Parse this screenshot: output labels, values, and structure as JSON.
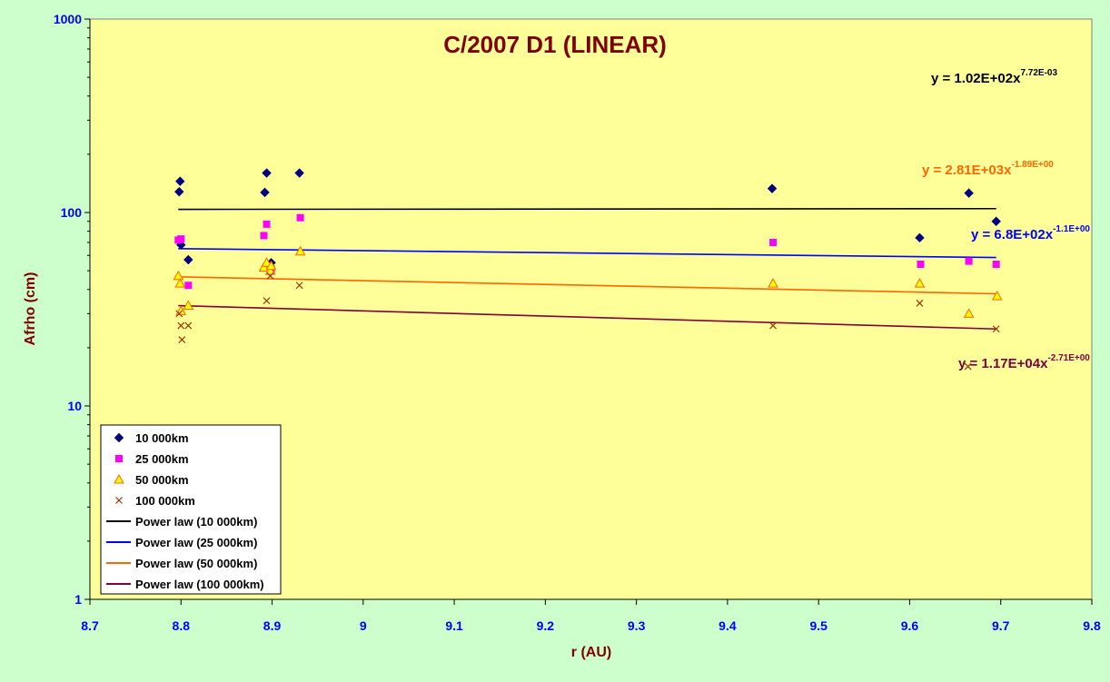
{
  "chart_data": {
    "type": "scatter",
    "title": "C/2007 D1 (LINEAR)",
    "xlabel": "r (AU)",
    "ylabel": "Afrho (cm)",
    "xlim": [
      8.7,
      9.8
    ],
    "ylim": [
      1,
      1000
    ],
    "yscale": "log",
    "x_ticks": [
      "8.7",
      "8.8",
      "8.9",
      "9",
      "9.1",
      "9.2",
      "9.3",
      "9.4",
      "9.5",
      "9.6",
      "9.7",
      "9.8"
    ],
    "x_tick_values": [
      8.7,
      8.8,
      8.9,
      9.0,
      9.1,
      9.2,
      9.3,
      9.4,
      9.5,
      9.6,
      9.7,
      9.8
    ],
    "y_ticks": [
      "1",
      "10",
      "100",
      "1000"
    ],
    "y_tick_values": [
      1,
      10,
      100,
      1000
    ],
    "grid": false,
    "legend_position": "bottom-left",
    "colors": {
      "page_bg": "#ccffcc",
      "plot_bg": "#ffff99",
      "title": "#800000",
      "ylabel": "#800000",
      "xlabel": "#800000",
      "tick_labels": "#0000ff",
      "s1": "#000080",
      "s2": "#ff00ff",
      "s3_fill": "#ffff00",
      "s3_edge": "#ff6600",
      "s4": "#993300",
      "fit1": "#000000",
      "fit2": "#0000ff",
      "fit3": "#ff6600",
      "fit4": "#800040"
    },
    "series": [
      {
        "name": "10 000km",
        "marker": "diamond",
        "x": [
          8.798,
          8.799,
          8.8,
          8.808,
          8.892,
          8.894,
          8.899,
          8.93,
          9.449,
          9.611,
          9.665,
          9.695
        ],
        "y": [
          128,
          145,
          68,
          57,
          127,
          160,
          55,
          160,
          133,
          74,
          126,
          90
        ]
      },
      {
        "name": "25 000km",
        "marker": "square",
        "x": [
          8.797,
          8.8,
          8.808,
          8.891,
          8.894,
          8.899,
          8.931,
          9.45,
          9.612,
          9.665,
          9.695
        ],
        "y": [
          72,
          73,
          42,
          76,
          87,
          51,
          94,
          70,
          54,
          56,
          54
        ]
      },
      {
        "name": "50 000km",
        "marker": "triangle",
        "x": [
          8.797,
          8.799,
          8.8,
          8.808,
          8.891,
          8.894,
          8.898,
          8.899,
          8.931,
          9.45,
          9.611,
          9.665,
          9.696
        ],
        "y": [
          47,
          43,
          31,
          33,
          52,
          55,
          50,
          53,
          63,
          43,
          43,
          30,
          37
        ]
      },
      {
        "name": "100 000km",
        "marker": "x",
        "x": [
          8.798,
          8.8,
          8.801,
          8.808,
          8.894,
          8.898,
          8.93,
          9.45,
          9.611,
          9.664,
          9.695
        ],
        "y": [
          30,
          26,
          22,
          26,
          35,
          47,
          42,
          26,
          34,
          16,
          25
        ]
      }
    ],
    "fits": [
      {
        "name": "Power law (10 000km)",
        "x": [
          8.797,
          9.695
        ],
        "y": [
          103.8,
          104.7
        ],
        "equation_main": "y = 1.02E+02x",
        "equation_exp": "7.72E-03"
      },
      {
        "name": "Power law (25 000km)",
        "x": [
          8.797,
          9.695
        ],
        "y": [
          65,
          58.5
        ],
        "equation_main": "y = 6.8E+02x",
        "equation_exp": "-1.1E+00"
      },
      {
        "name": "Power law (50 000km)",
        "x": [
          8.797,
          9.695
        ],
        "y": [
          46.5,
          38
        ],
        "equation_main": "y = 2.81E+03x",
        "equation_exp": "-1.89E+00"
      },
      {
        "name": "Power law (100 000km)",
        "x": [
          8.797,
          9.695
        ],
        "y": [
          33,
          25
        ],
        "equation_main": "y = 1.17E+04x",
        "equation_exp": "-2.71E+00"
      }
    ]
  }
}
